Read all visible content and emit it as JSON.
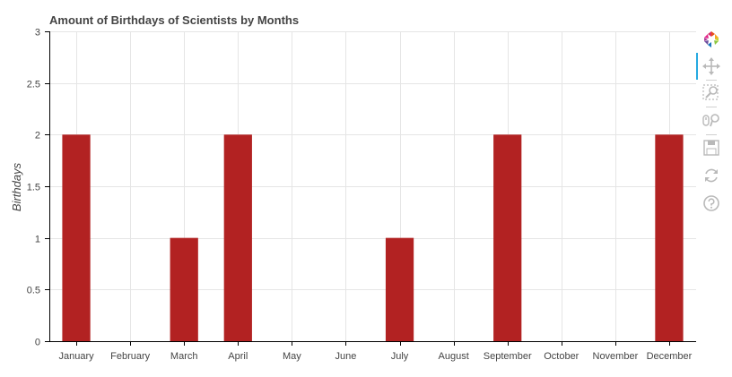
{
  "colors": {
    "bar": "#b22222",
    "grid": "#e5e5e5",
    "text": "#444444",
    "axis": "#000000",
    "toolbar_icon": "#cccccc",
    "active_tool": "#26aae1"
  },
  "chart_data": {
    "type": "bar",
    "title": "Amount of Birthdays of Scientists by Months",
    "xlabel": "",
    "ylabel": "Birthdays",
    "categories": [
      "January",
      "February",
      "March",
      "April",
      "May",
      "June",
      "July",
      "August",
      "September",
      "October",
      "November",
      "December"
    ],
    "values": [
      2,
      0,
      1,
      2,
      0,
      0,
      1,
      0,
      2,
      0,
      0,
      2
    ],
    "ylim": [
      0,
      3
    ],
    "yticks": [
      "0",
      "0.5",
      "1",
      "1.5",
      "2",
      "2.5",
      "3"
    ],
    "grid": true,
    "legend": "none"
  },
  "toolbar": {
    "items": [
      {
        "name": "bokeh-logo-icon",
        "icon": "bokeh-logo"
      },
      {
        "name": "pan-tool-icon",
        "icon": "pan",
        "active": true
      },
      {
        "name": "box-zoom-tool-icon",
        "icon": "box-zoom"
      },
      {
        "name": "wheel-zoom-tool-icon",
        "icon": "wheel-zoom"
      },
      {
        "name": "save-tool-icon",
        "icon": "save"
      },
      {
        "name": "reset-tool-icon",
        "icon": "reset"
      },
      {
        "name": "help-tool-icon",
        "icon": "help"
      }
    ]
  }
}
